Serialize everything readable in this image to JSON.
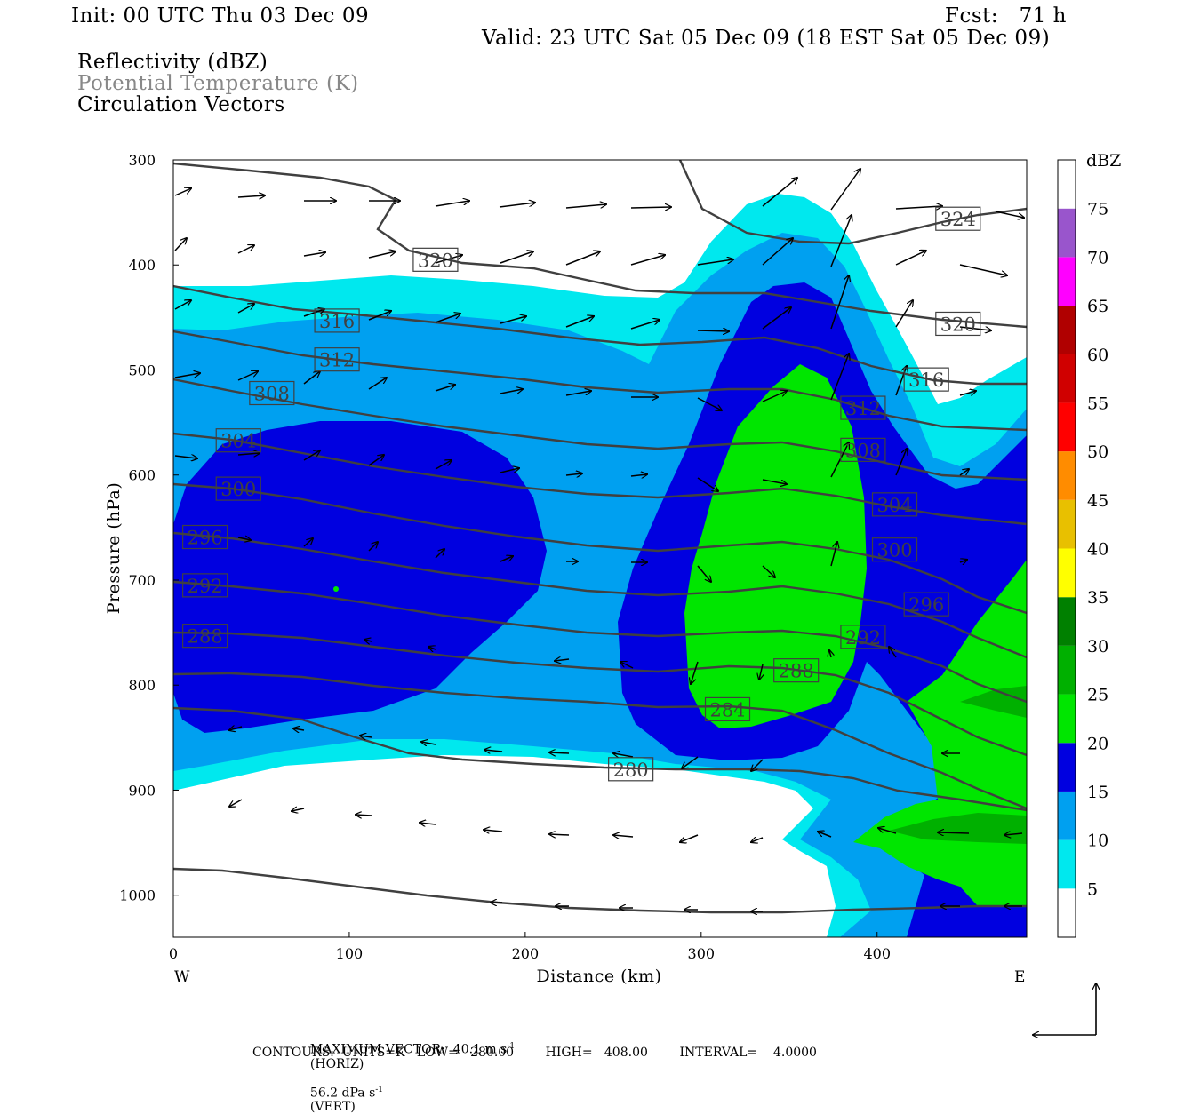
{
  "header": {
    "init": "Init: 00 UTC Thu 03 Dec 09",
    "fcst": "Fcst:   71 h",
    "valid": "Valid: 23 UTC Sat 05 Dec 09 (18 EST Sat 05 Dec 09)",
    "field1": "Reflectivity (dBZ)",
    "field2": "Potential Temperature (K)",
    "field3": "Circulation Vectors"
  },
  "colors": {
    "cyan": "#00e8ee",
    "lightblue": "#00a0f0",
    "blue": "#0000e0",
    "green": "#00e600",
    "darkgreen": "#00b000",
    "contour": "#404040"
  },
  "colorbar": {
    "unit": "dBZ",
    "levels": [
      "5",
      "10",
      "15",
      "20",
      "25",
      "30",
      "35",
      "40",
      "45",
      "50",
      "55",
      "60",
      "65",
      "70",
      "75"
    ],
    "colors": [
      "#ffffff",
      "#00e8ee",
      "#00a0f0",
      "#0000e0",
      "#00e600",
      "#00b000",
      "#008000",
      "#ffff00",
      "#e8c000",
      "#ff8c00",
      "#ff0000",
      "#d00000",
      "#b00000",
      "#ff00ff",
      "#9955cc",
      "#ffffff"
    ]
  },
  "footer": {
    "max_vector": "MAXIMUM VECTOR:  40.1 m s",
    "horiz": "(HORIZ)",
    "vert_val": "56.2 dPa s",
    "vert": "(VERT)",
    "minus1": "-1",
    "contours": "CONTOURS:  UNITS=K   LOW=   280.00        HIGH=   408.00        INTERVAL=    4.0000"
  },
  "chart_data": {
    "type": "contour",
    "xlabel": "Distance (km)",
    "ylabel": "Pressure (hPa)",
    "xlim": [
      0,
      485
    ],
    "ylim": [
      300,
      1040
    ],
    "x_ticks": [
      "0",
      "100",
      "200",
      "300",
      "400"
    ],
    "y_ticks": [
      "300",
      "400",
      "500",
      "600",
      "700",
      "800",
      "900",
      "1000"
    ],
    "west_label": "W",
    "east_label": "E",
    "theta_labels": [
      {
        "v": "324",
        "x": 446,
        "p": 356
      },
      {
        "v": "320",
        "x": 149,
        "p": 395
      },
      {
        "v": "320",
        "x": 446,
        "p": 456
      },
      {
        "v": "316",
        "x": 93,
        "p": 453
      },
      {
        "v": "316",
        "x": 428,
        "p": 509
      },
      {
        "v": "312",
        "x": 93,
        "p": 490
      },
      {
        "v": "312",
        "x": 392,
        "p": 536
      },
      {
        "v": "308",
        "x": 56,
        "p": 522
      },
      {
        "v": "308",
        "x": 392,
        "p": 576
      },
      {
        "v": "304",
        "x": 37,
        "p": 567
      },
      {
        "v": "304",
        "x": 410,
        "p": 628
      },
      {
        "v": "300",
        "x": 37,
        "p": 613
      },
      {
        "v": "300",
        "x": 410,
        "p": 671
      },
      {
        "v": "296",
        "x": 18,
        "p": 659
      },
      {
        "v": "296",
        "x": 428,
        "p": 723
      },
      {
        "v": "292",
        "x": 18,
        "p": 705
      },
      {
        "v": "292",
        "x": 392,
        "p": 754
      },
      {
        "v": "288",
        "x": 18,
        "p": 753
      },
      {
        "v": "288",
        "x": 354,
        "p": 786
      },
      {
        "v": "284",
        "x": 315,
        "p": 823
      },
      {
        "v": "280",
        "x": 260,
        "p": 880
      }
    ]
  }
}
